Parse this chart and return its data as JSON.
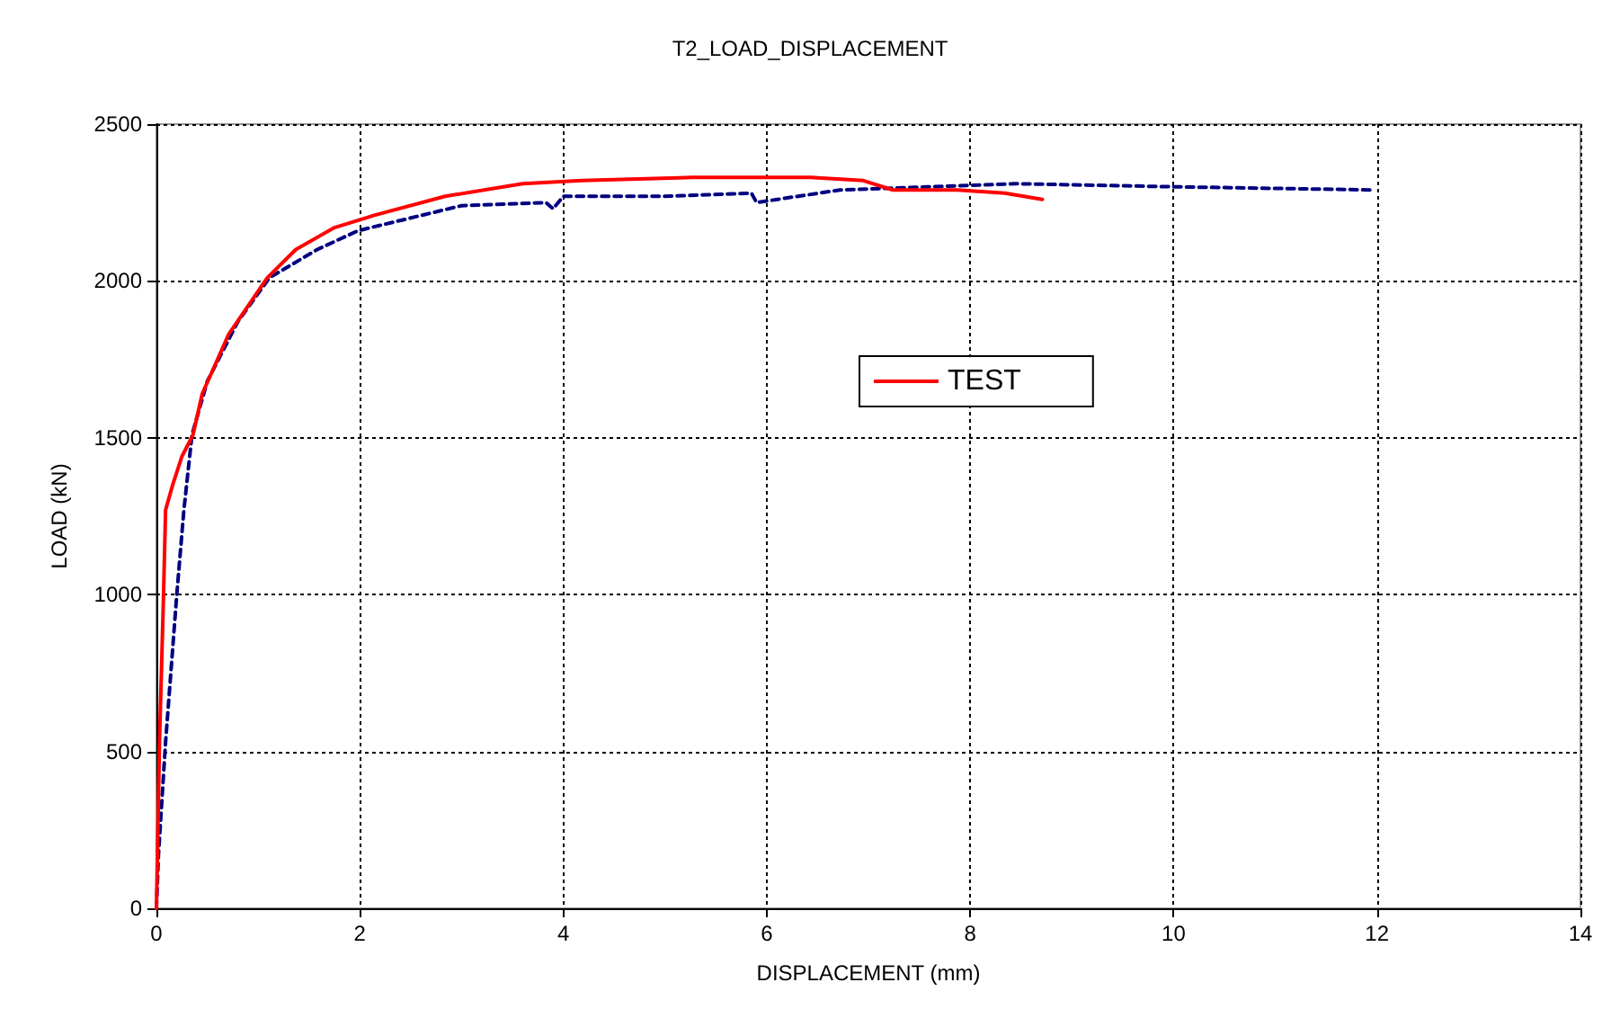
{
  "chart_data": {
    "type": "line",
    "title": "T2_LOAD_DISPLACEMENT",
    "xlabel": "DISPLACEMENT (mm)",
    "ylabel": "LOAD (kN)",
    "xlim": [
      0,
      14
    ],
    "xticks": [
      0,
      2,
      4,
      6,
      8,
      10,
      12,
      14
    ],
    "ylim": [
      0,
      2500
    ],
    "yticks": [
      0,
      500,
      1000,
      1500,
      2000,
      2500
    ],
    "grid": true,
    "legend": "right",
    "marker": "none",
    "series": [
      {
        "color": "#000080",
        "line_style": "dashed",
        "x": [
          0,
          0.02,
          0.09,
          0.2,
          0.27,
          0.35,
          0.5,
          0.8,
          1.11,
          1.58,
          1.98,
          3.0,
          3.83,
          3.9,
          4.0,
          5.0,
          5.85,
          5.9,
          6.72,
          7.58,
          8.45,
          10.04,
          11.98
        ],
        "values": [
          0,
          170,
          530,
          1000,
          1270,
          1510,
          1680,
          1870,
          2010,
          2100,
          2160,
          2240,
          2250,
          2230,
          2270,
          2270,
          2280,
          2250,
          2290,
          2300,
          2310,
          2300,
          2290
        ]
      },
      {
        "name": "TEST",
        "color": "#ff0000",
        "line_style": "solid",
        "x": [
          0,
          0.01,
          0.03,
          0.07,
          0.09,
          0.16,
          0.25,
          0.36,
          0.45,
          0.71,
          1.09,
          1.37,
          1.75,
          2.15,
          2.84,
          3.6,
          4.18,
          5.27,
          6.43,
          6.95,
          7.24,
          7.87,
          8.34,
          8.71
        ],
        "values": [
          0,
          170,
          530,
          1000,
          1270,
          1350,
          1440,
          1510,
          1640,
          1830,
          2010,
          2100,
          2170,
          2210,
          2270,
          2310,
          2320,
          2330,
          2330,
          2320,
          2290,
          2290,
          2280,
          2260
        ]
      }
    ]
  }
}
